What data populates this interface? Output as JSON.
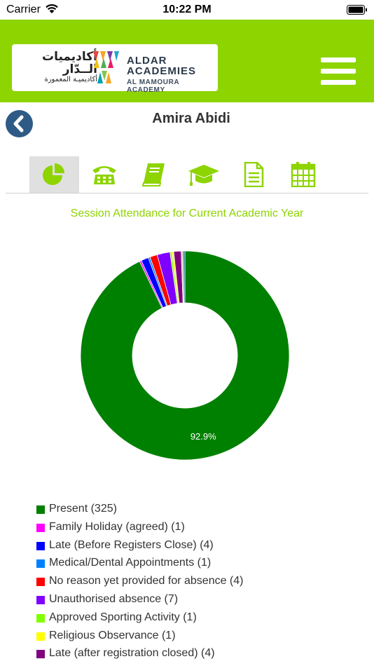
{
  "status_bar": {
    "carrier": "Carrier",
    "time": "10:22 PM"
  },
  "header": {
    "logo": {
      "arabic_line1": "أكاديميات",
      "arabic_line2": "الــدّار",
      "arabic_line3": "أكاديميـة المعمورة",
      "name_line1": "ALDAR",
      "name_line2": "ACADEMIES",
      "name_line3": "AL MAMOURA ACADEMY"
    },
    "menu_icon": "hamburger-icon",
    "background_color": "#8dd400"
  },
  "student": {
    "name": "Amira Abidi"
  },
  "tabs": [
    {
      "icon": "pie-chart-icon",
      "active": true
    },
    {
      "icon": "telephone-icon",
      "active": false
    },
    {
      "icon": "book-icon",
      "active": false
    },
    {
      "icon": "graduation-cap-icon",
      "active": false
    },
    {
      "icon": "document-icon",
      "active": false
    },
    {
      "icon": "calendar-icon",
      "active": false
    }
  ],
  "attendance": {
    "title": "Session Attendance for Current Academic Year"
  },
  "chart_data": {
    "type": "pie",
    "donut": true,
    "slice_labels_shown": [
      "92.9%"
    ],
    "legend_placement": "bottom-left",
    "series": [
      {
        "label": "Present (325)",
        "value": 325,
        "color": "#008000"
      },
      {
        "label": "Family Holiday (agreed) (1)",
        "value": 1,
        "color": "#ff00ff"
      },
      {
        "label": "Late (Before Registers Close) (4)",
        "value": 4,
        "color": "#0000ff"
      },
      {
        "label": "Medical/Dental Appointments (1)",
        "value": 1,
        "color": "#0080ff"
      },
      {
        "label": "No reason yet provided for absence (4)",
        "value": 4,
        "color": "#ff0000"
      },
      {
        "label": "Unauthorised absence (7)",
        "value": 7,
        "color": "#8000ff"
      },
      {
        "label": "Approved Sporting Activity (1)",
        "value": 1,
        "color": "#80ff00"
      },
      {
        "label": "Religious Observance (1)",
        "value": 1,
        "color": "#ffff00"
      },
      {
        "label": "Late (after registration closed) (4)",
        "value": 4,
        "color": "#800080"
      }
    ],
    "extra_slices_after_legend": [
      {
        "value": 1,
        "color": "#c8c8c8"
      },
      {
        "value": 1,
        "color": "#008080"
      }
    ]
  }
}
